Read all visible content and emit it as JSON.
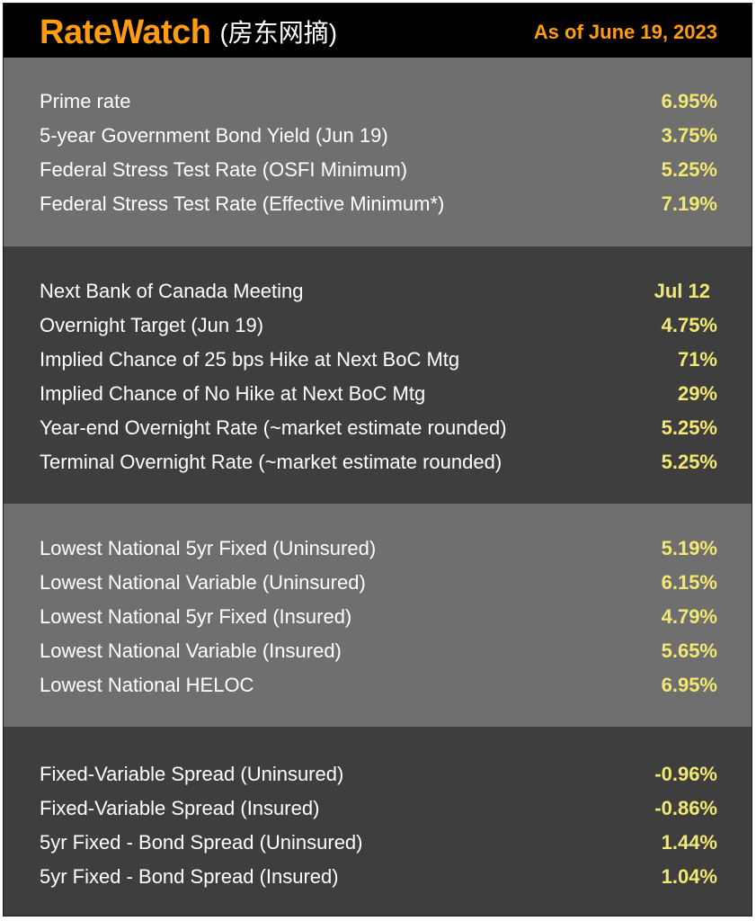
{
  "header": {
    "brand": "RateWatch",
    "brand_sub": "(房东网摘)",
    "as_of": "As of June 19, 2023"
  },
  "sections": [
    {
      "rows": [
        {
          "label": "Prime rate",
          "value": "6.95%"
        },
        {
          "label": "5-year Government Bond Yield (Jun 19)",
          "value": "3.75%"
        },
        {
          "label": "Federal Stress Test Rate (OSFI Minimum)",
          "value": "5.25%"
        },
        {
          "label": "Federal Stress Test Rate (Effective Minimum*)",
          "value": "7.19%"
        }
      ]
    },
    {
      "rows": [
        {
          "label": "Next Bank of Canada Meeting",
          "value": "Jul 12"
        },
        {
          "label": "Overnight Target (Jun 19)",
          "value": "4.75%"
        },
        {
          "label": "Implied Chance of 25 bps Hike at Next BoC Mtg",
          "value": "71%"
        },
        {
          "label": "Implied Chance of No Hike at Next BoC Mtg",
          "value": "29%"
        },
        {
          "label": "Year-end Overnight Rate (~market estimate rounded)",
          "value": "5.25%"
        },
        {
          "label": "Terminal Overnight Rate (~market estimate rounded)",
          "value": "5.25%"
        }
      ]
    },
    {
      "rows": [
        {
          "label": "Lowest National 5yr Fixed (Uninsured)",
          "value": "5.19%"
        },
        {
          "label": "Lowest National Variable (Uninsured)",
          "value": "6.15%"
        },
        {
          "label": "Lowest National 5yr Fixed (Insured)",
          "value": "4.79%"
        },
        {
          "label": "Lowest National Variable (Insured)",
          "value": "5.65%"
        },
        {
          "label": "Lowest National HELOC",
          "value": "6.95%"
        }
      ]
    },
    {
      "rows": [
        {
          "label": "Fixed-Variable Spread (Uninsured)",
          "value": "-0.96%"
        },
        {
          "label": "Fixed-Variable Spread (Insured)",
          "value": "-0.86%"
        },
        {
          "label": "5yr Fixed - Bond Spread (Uninsured)",
          "value": "1.44%"
        },
        {
          "label": "5yr Fixed - Bond Spread (Insured)",
          "value": "1.04%"
        }
      ]
    }
  ],
  "colors": {
    "brand": "#ff9c0f",
    "value_text": "#f2e872",
    "header_bg": "#000000",
    "section_light": "#6f6f6f",
    "section_dark": "#3e3e3e"
  }
}
